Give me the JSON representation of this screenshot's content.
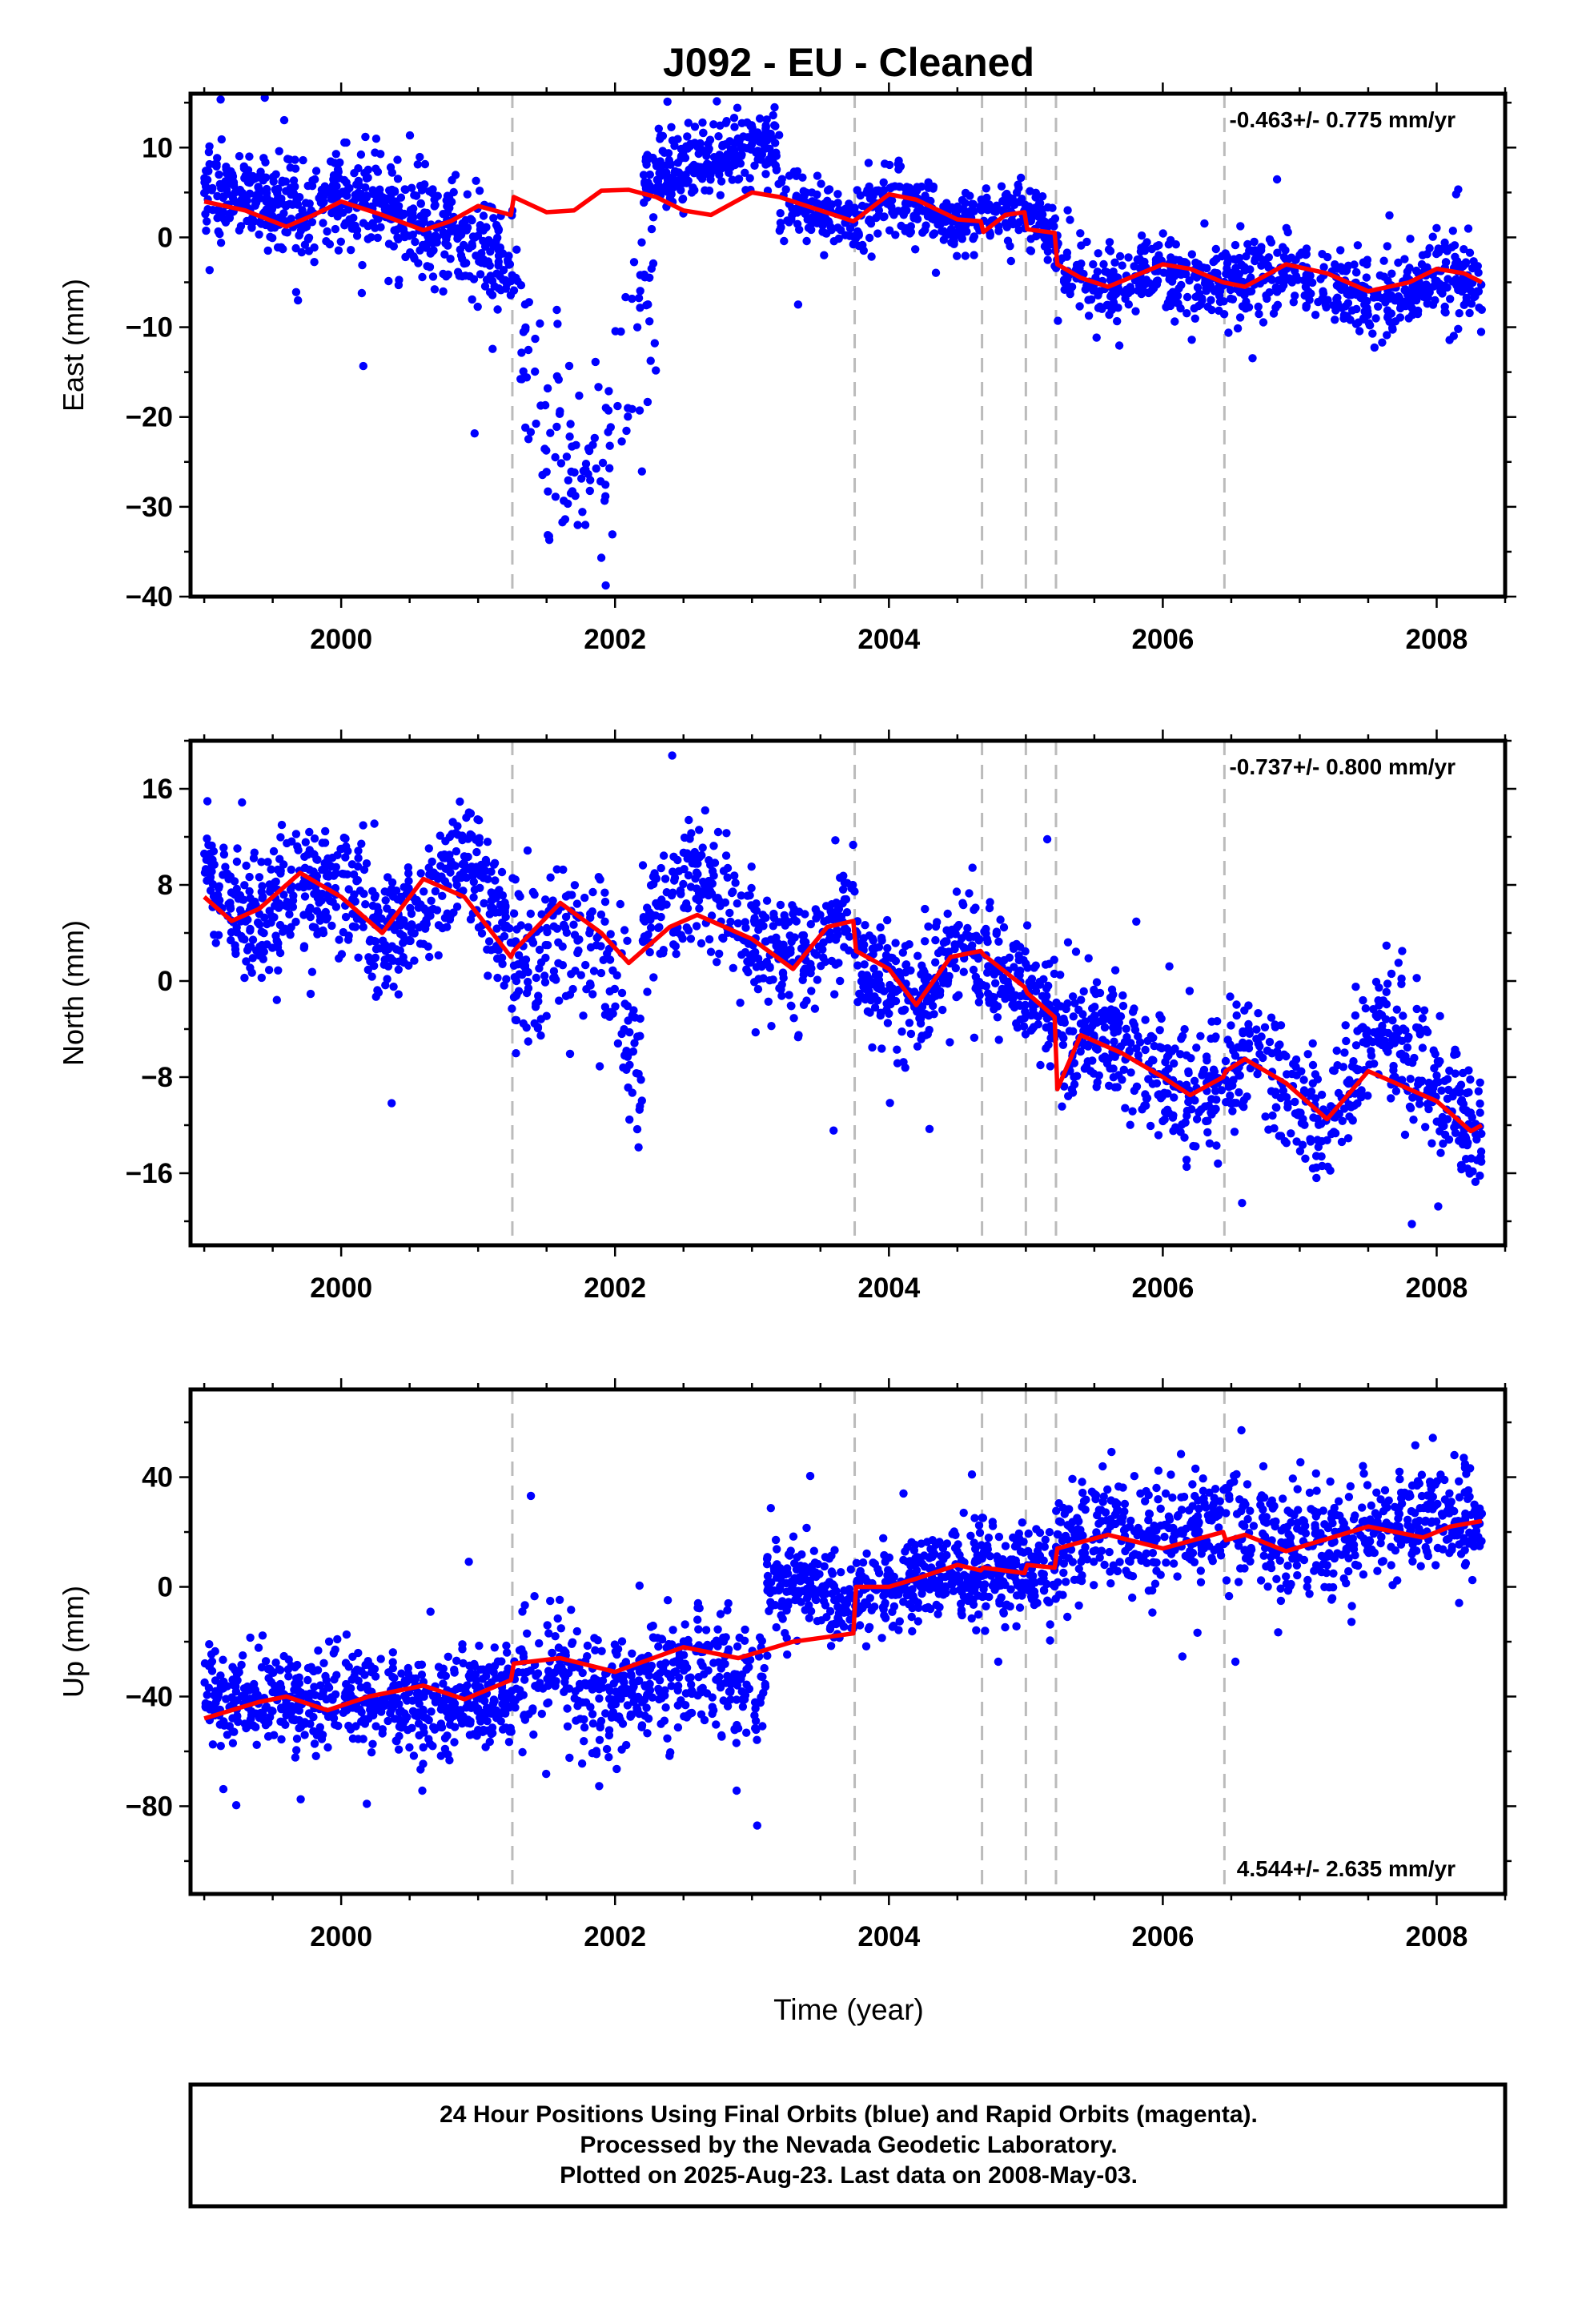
{
  "chart_data": {
    "type": "scatter",
    "title": "J092  - EU - Cleaned",
    "xlabel": "Time (year)",
    "xlim": [
      1998.9,
      2008.5
    ],
    "x_ticks": [
      2000,
      2002,
      2004,
      2006,
      2008
    ],
    "x_tick_labels": [
      "2000",
      "2002",
      "2004",
      "2006",
      "2008"
    ],
    "x_minor_step": 0.5,
    "grid": false,
    "equipment_changes": [
      2001.25,
      2003.75,
      2004.68,
      2005.0,
      2005.22,
      2006.45
    ],
    "series_colors": {
      "final_orbits": "#0000ff",
      "rapid_orbits": "#ff00ff",
      "model": "#ff0000",
      "steps": "#bbbbbb"
    },
    "panels": [
      {
        "name": "East",
        "ylabel": "East (mm)",
        "ylim": [
          -40,
          16
        ],
        "y_ticks": [
          -40,
          -30,
          -20,
          -10,
          0,
          10
        ],
        "y_tick_labels": [
          "−40",
          "−30",
          "−20",
          "−10",
          "0",
          "10"
        ],
        "y_minor_step": 5,
        "rate_text": "-0.463+/- 0.775 mm/yr",
        "rate_position": "top-right",
        "model_line": [
          [
            1999.0,
            4.0
          ],
          [
            1999.3,
            3.0
          ],
          [
            1999.6,
            1.2
          ],
          [
            1999.8,
            2.5
          ],
          [
            2000.0,
            4.0
          ],
          [
            2000.3,
            2.5
          ],
          [
            2000.6,
            0.8
          ],
          [
            2000.8,
            1.8
          ],
          [
            2001.0,
            3.5
          ],
          [
            2001.24,
            2.5
          ],
          [
            2001.26,
            4.5
          ],
          [
            2001.5,
            2.8
          ],
          [
            2001.7,
            3.0
          ],
          [
            2001.9,
            5.2
          ],
          [
            2002.1,
            5.3
          ],
          [
            2002.3,
            4.5
          ],
          [
            2002.5,
            3.0
          ],
          [
            2002.7,
            2.5
          ],
          [
            2003.0,
            5.0
          ],
          [
            2003.2,
            4.5
          ],
          [
            2003.5,
            3.0
          ],
          [
            2003.74,
            1.8
          ],
          [
            2003.76,
            2.0
          ],
          [
            2004.0,
            4.8
          ],
          [
            2004.2,
            4.2
          ],
          [
            2004.5,
            2.0
          ],
          [
            2004.67,
            1.8
          ],
          [
            2004.69,
            0.6
          ],
          [
            2004.85,
            2.5
          ],
          [
            2004.99,
            2.8
          ],
          [
            2005.01,
            0.9
          ],
          [
            2005.21,
            0.5
          ],
          [
            2005.23,
            -3.0
          ],
          [
            2005.4,
            -4.5
          ],
          [
            2005.6,
            -5.5
          ],
          [
            2006.0,
            -3.0
          ],
          [
            2006.2,
            -3.5
          ],
          [
            2006.44,
            -5.0
          ],
          [
            2006.6,
            -5.5
          ],
          [
            2006.9,
            -3.0
          ],
          [
            2007.2,
            -4.0
          ],
          [
            2007.5,
            -6.0
          ],
          [
            2007.8,
            -5.0
          ],
          [
            2008.0,
            -3.5
          ],
          [
            2008.2,
            -4.0
          ],
          [
            2008.33,
            -5.0
          ]
        ],
        "clusters": [
          {
            "x0": 1999.0,
            "x1": 2001.25,
            "n": 650,
            "spread": 2.8,
            "trend": [
              [
                1999.0,
                5.5
              ],
              [
                1999.3,
                5.0
              ],
              [
                1999.8,
                3.5
              ],
              [
                2000.2,
                4.0
              ],
              [
                2000.6,
                1.5
              ],
              [
                2001.0,
                -1.0
              ],
              [
                2001.25,
                -2.5
              ]
            ]
          },
          {
            "x0": 2001.25,
            "x1": 2002.3,
            "n": 130,
            "spread": 6,
            "trend": [
              [
                2001.25,
                -5.0
              ],
              [
                2001.5,
                -22
              ],
              [
                2001.8,
                -28
              ],
              [
                2002.0,
                -20
              ],
              [
                2002.2,
                -8
              ],
              [
                2002.3,
                -4
              ]
            ]
          },
          {
            "x0": 2002.2,
            "x1": 2003.2,
            "n": 280,
            "spread": 2.2,
            "trend": [
              [
                2002.2,
                6.5
              ],
              [
                2002.6,
                8.0
              ],
              [
                2003.0,
                10.5
              ],
              [
                2003.2,
                10.0
              ]
            ]
          },
          {
            "x0": 2003.2,
            "x1": 2005.22,
            "n": 450,
            "spread": 1.8,
            "trend": [
              [
                2003.2,
                4.0
              ],
              [
                2003.75,
                2.0
              ],
              [
                2004.0,
                5.0
              ],
              [
                2004.5,
                1.5
              ],
              [
                2005.0,
                3.0
              ],
              [
                2005.22,
                0.5
              ]
            ]
          },
          {
            "x0": 2005.22,
            "x1": 2008.33,
            "n": 700,
            "spread": 2.2,
            "trend": [
              [
                2005.22,
                -3.5
              ],
              [
                2005.6,
                -6.0
              ],
              [
                2006.0,
                -3.5
              ],
              [
                2006.45,
                -5.5
              ],
              [
                2006.9,
                -3.5
              ],
              [
                2007.5,
                -7.0
              ],
              [
                2008.0,
                -4.5
              ],
              [
                2008.33,
                -5.5
              ]
            ]
          }
        ]
      },
      {
        "name": "North",
        "ylabel": "North (mm)",
        "ylim": [
          -22,
          20
        ],
        "y_ticks": [
          -16,
          -8,
          0,
          8,
          16
        ],
        "y_tick_labels": [
          "−16",
          "−8",
          "0",
          "8",
          "16"
        ],
        "y_minor_step": 4,
        "rate_text": "-0.737+/- 0.800 mm/yr",
        "rate_position": "top-right",
        "model_line": [
          [
            1999.0,
            7.0
          ],
          [
            1999.2,
            5.0
          ],
          [
            1999.4,
            6.0
          ],
          [
            1999.7,
            9.0
          ],
          [
            2000.0,
            7.0
          ],
          [
            2000.3,
            4.0
          ],
          [
            2000.6,
            8.5
          ],
          [
            2000.9,
            7.0
          ],
          [
            2001.24,
            2.0
          ],
          [
            2001.26,
            2.5
          ],
          [
            2001.6,
            6.5
          ],
          [
            2001.9,
            4.0
          ],
          [
            2002.1,
            1.5
          ],
          [
            2002.4,
            4.5
          ],
          [
            2002.6,
            5.5
          ],
          [
            2003.0,
            3.5
          ],
          [
            2003.3,
            1.0
          ],
          [
            2003.55,
            4.5
          ],
          [
            2003.74,
            5.0
          ],
          [
            2003.76,
            2.5
          ],
          [
            2004.0,
            1.0
          ],
          [
            2004.2,
            -2.0
          ],
          [
            2004.45,
            2.0
          ],
          [
            2004.67,
            2.5
          ],
          [
            2004.69,
            2.2
          ],
          [
            2004.99,
            -0.5
          ],
          [
            2005.01,
            -1.0
          ],
          [
            2005.21,
            -3.0
          ],
          [
            2005.23,
            -9.0
          ],
          [
            2005.4,
            -4.5
          ],
          [
            2005.7,
            -6.0
          ],
          [
            2006.0,
            -8.0
          ],
          [
            2006.2,
            -9.5
          ],
          [
            2006.44,
            -8.0
          ],
          [
            2006.46,
            -7.5
          ],
          [
            2006.6,
            -6.5
          ],
          [
            2006.9,
            -8.5
          ],
          [
            2007.2,
            -11.5
          ],
          [
            2007.5,
            -7.5
          ],
          [
            2008.0,
            -10.0
          ],
          [
            2008.25,
            -12.5
          ],
          [
            2008.33,
            -12.0
          ]
        ],
        "clusters": [
          {
            "x0": 1999.0,
            "x1": 2001.25,
            "n": 600,
            "spread": 2.6,
            "trend": [
              [
                1999.0,
                10.0
              ],
              [
                1999.3,
                5.0
              ],
              [
                1999.7,
                7.0
              ],
              [
                2000.0,
                8.0
              ],
              [
                2000.3,
                3.0
              ],
              [
                2000.6,
                6.0
              ],
              [
                2000.9,
                11.0
              ],
              [
                2001.25,
                3.0
              ]
            ]
          },
          {
            "x0": 2001.25,
            "x1": 2002.2,
            "n": 200,
            "spread": 3.5,
            "trend": [
              [
                2001.25,
                1.5
              ],
              [
                2001.6,
                3.0
              ],
              [
                2001.9,
                3.0
              ],
              [
                2002.1,
                -5.0
              ],
              [
                2002.2,
                -8.0
              ]
            ]
          },
          {
            "x0": 2002.2,
            "x1": 2003.75,
            "n": 350,
            "spread": 2.4,
            "trend": [
              [
                2002.2,
                4.0
              ],
              [
                2002.6,
                9.0
              ],
              [
                2003.0,
                3.0
              ],
              [
                2003.4,
                1.0
              ],
              [
                2003.75,
                6.0
              ]
            ]
          },
          {
            "x0": 2003.75,
            "x1": 2005.22,
            "n": 400,
            "spread": 2.2,
            "trend": [
              [
                2003.75,
                2.0
              ],
              [
                2004.2,
                -2.0
              ],
              [
                2004.5,
                3.0
              ],
              [
                2005.0,
                -1.0
              ],
              [
                2005.22,
                -3.0
              ]
            ]
          },
          {
            "x0": 2005.22,
            "x1": 2008.33,
            "n": 750,
            "spread": 2.6,
            "trend": [
              [
                2005.22,
                -5.0
              ],
              [
                2005.6,
                -4.0
              ],
              [
                2006.2,
                -10.0
              ],
              [
                2006.6,
                -6.0
              ],
              [
                2007.2,
                -12.0
              ],
              [
                2007.6,
                -3.0
              ],
              [
                2008.0,
                -9.0
              ],
              [
                2008.33,
                -13.0
              ]
            ]
          }
        ]
      },
      {
        "name": "Up",
        "ylabel": "Up (mm)",
        "ylim": [
          -112,
          72
        ],
        "y_ticks": [
          -80,
          -40,
          0,
          40
        ],
        "y_tick_labels": [
          "−80",
          "−40",
          "0",
          "40"
        ],
        "y_minor_step": 20,
        "rate_text": "4.544+/- 2.635 mm/yr",
        "rate_position": "bottom-right",
        "model_line": [
          [
            1999.0,
            -48
          ],
          [
            1999.4,
            -42
          ],
          [
            1999.6,
            -40
          ],
          [
            1999.9,
            -45
          ],
          [
            2000.2,
            -40
          ],
          [
            2000.6,
            -36
          ],
          [
            2000.9,
            -41
          ],
          [
            2001.24,
            -34
          ],
          [
            2001.26,
            -28
          ],
          [
            2001.6,
            -26
          ],
          [
            2002.0,
            -31
          ],
          [
            2002.5,
            -22
          ],
          [
            2002.7,
            -24
          ],
          [
            2002.9,
            -26
          ],
          [
            2003.3,
            -20
          ],
          [
            2003.74,
            -17
          ],
          [
            2003.76,
            0
          ],
          [
            2004.0,
            0
          ],
          [
            2004.2,
            3
          ],
          [
            2004.5,
            8
          ],
          [
            2004.67,
            6
          ],
          [
            2004.69,
            7
          ],
          [
            2004.99,
            5
          ],
          [
            2005.01,
            8
          ],
          [
            2005.21,
            7
          ],
          [
            2005.23,
            14
          ],
          [
            2005.6,
            19
          ],
          [
            2006.0,
            14
          ],
          [
            2006.44,
            20
          ],
          [
            2006.46,
            17
          ],
          [
            2006.6,
            19
          ],
          [
            2006.9,
            13
          ],
          [
            2007.5,
            22
          ],
          [
            2007.9,
            18
          ],
          [
            2008.1,
            22
          ],
          [
            2008.33,
            24
          ]
        ],
        "clusters": [
          {
            "x0": 1999.0,
            "x1": 2001.25,
            "n": 650,
            "spread": 8.5,
            "trend": [
              [
                1999.0,
                -40
              ],
              [
                2000.0,
                -42
              ],
              [
                2000.6,
                -44
              ],
              [
                2001.25,
                -40
              ]
            ]
          },
          {
            "x0": 2001.25,
            "x1": 2003.1,
            "n": 450,
            "spread": 11,
            "trend": [
              [
                2001.25,
                -32
              ],
              [
                2001.6,
                -30
              ],
              [
                2001.9,
                -42
              ],
              [
                2002.3,
                -32
              ],
              [
                2002.7,
                -30
              ],
              [
                2003.1,
                -38
              ]
            ]
          },
          {
            "x0": 2003.1,
            "x1": 2003.75,
            "n": 180,
            "spread": 8,
            "trend": [
              [
                2003.1,
                2
              ],
              [
                2003.4,
                3
              ],
              [
                2003.75,
                -10
              ]
            ]
          },
          {
            "x0": 2003.75,
            "x1": 2005.22,
            "n": 420,
            "spread": 8,
            "trend": [
              [
                2003.75,
                -5
              ],
              [
                2004.2,
                5
              ],
              [
                2004.7,
                5
              ],
              [
                2005.22,
                6
              ]
            ]
          },
          {
            "x0": 2005.22,
            "x1": 2008.33,
            "n": 750,
            "spread": 9.5,
            "trend": [
              [
                2005.22,
                14
              ],
              [
                2005.6,
                24
              ],
              [
                2006.0,
                17
              ],
              [
                2006.45,
                24
              ],
              [
                2006.9,
                14
              ],
              [
                2007.5,
                20
              ],
              [
                2008.0,
                24
              ],
              [
                2008.33,
                22
              ]
            ]
          }
        ]
      }
    ],
    "footer_lines": [
      "24 Hour Positions Using Final Orbits (blue) and Rapid Orbits (magenta).",
      "Processed by the Nevada Geodetic Laboratory.",
      "Plotted on 2025-Aug-23. Last data on 2008-May-03."
    ]
  }
}
